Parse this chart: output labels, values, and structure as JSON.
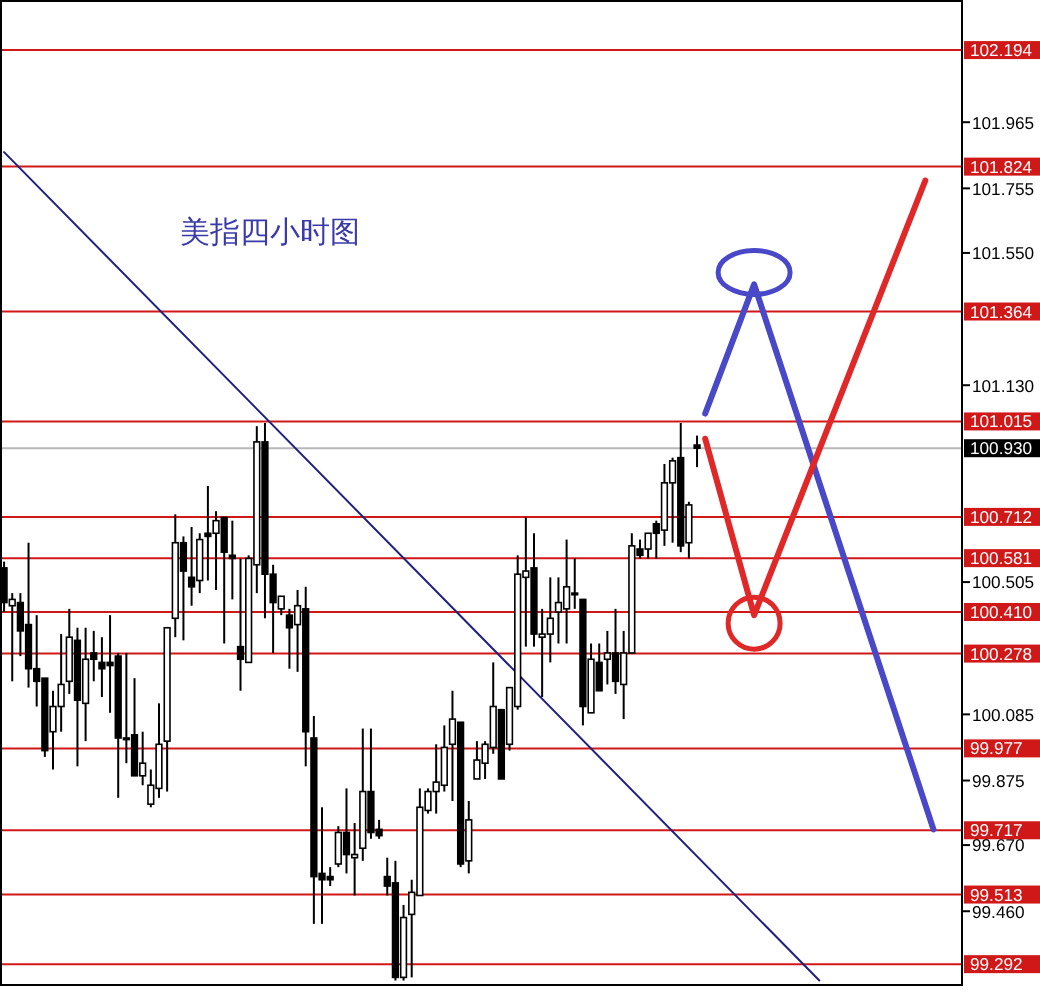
{
  "chart_data": {
    "type": "candlestick",
    "title": "美指四小时图",
    "tick_labels": "y",
    "categories": [
      null,
      null,
      null,
      null,
      null,
      null,
      null,
      null,
      null,
      null,
      null,
      null,
      null,
      null,
      null,
      null,
      null,
      null,
      null,
      null,
      null,
      null,
      null,
      null,
      null,
      null,
      null,
      null,
      null,
      null,
      null,
      null,
      null,
      null,
      null,
      null,
      null,
      null,
      null,
      null,
      null,
      null,
      null,
      null,
      null,
      null,
      null,
      null,
      null,
      null,
      null,
      null,
      null,
      null,
      null,
      null,
      null,
      null,
      null,
      null,
      null,
      null,
      null,
      null,
      null,
      null,
      null,
      null,
      null,
      null,
      null,
      null,
      null,
      null,
      null,
      null,
      null,
      null,
      null,
      null,
      null,
      null,
      null,
      null,
      null,
      null,
      null,
      null,
      null,
      null,
      null,
      null,
      null,
      null,
      null,
      null,
      null,
      null,
      null,
      null,
      null,
      null,
      null,
      null,
      null,
      null,
      null,
      null,
      null,
      null,
      null,
      null,
      null,
      null,
      null,
      null,
      null,
      null
    ],
    "ohlc": [
      [
        100.55,
        100.57,
        100.41,
        100.44
      ],
      [
        100.43,
        100.47,
        100.19,
        100.45
      ],
      [
        100.44,
        100.47,
        100.27,
        100.35
      ],
      [
        100.37,
        100.63,
        100.17,
        100.23
      ],
      [
        100.23,
        100.4,
        100.11,
        100.19
      ],
      [
        100.2,
        100.2,
        99.95,
        99.97
      ],
      [
        100.03,
        100.16,
        99.91,
        100.11
      ],
      [
        100.11,
        100.34,
        100.03,
        100.18
      ],
      [
        100.19,
        100.42,
        100.15,
        100.33
      ],
      [
        100.32,
        100.36,
        99.92,
        100.13
      ],
      [
        100.12,
        100.36,
        100.0,
        100.26
      ],
      [
        100.28,
        100.35,
        100.19,
        100.26
      ],
      [
        100.25,
        100.33,
        100.14,
        100.23
      ],
      [
        100.25,
        100.4,
        100.09,
        100.24
      ],
      [
        100.27,
        100.28,
        99.82,
        100.01
      ],
      [
        100.01,
        100.28,
        99.93,
        100.01
      ],
      [
        100.02,
        100.2,
        99.89,
        99.89
      ],
      [
        99.89,
        100.03,
        99.86,
        99.93
      ],
      [
        99.8,
        99.91,
        99.79,
        99.86
      ],
      [
        99.85,
        100.12,
        99.82,
        99.99
      ],
      [
        100.0,
        100.36,
        99.84,
        100.36
      ],
      [
        100.39,
        100.72,
        100.33,
        100.63
      ],
      [
        100.63,
        100.65,
        100.32,
        100.54
      ],
      [
        100.52,
        100.68,
        100.43,
        100.49
      ],
      [
        100.51,
        100.66,
        100.47,
        100.64
      ],
      [
        100.66,
        100.81,
        100.51,
        100.65
      ],
      [
        100.66,
        100.73,
        100.48,
        100.7
      ],
      [
        100.71,
        100.71,
        100.31,
        100.6
      ],
      [
        100.59,
        100.7,
        100.45,
        100.58
      ],
      [
        100.3,
        100.58,
        100.16,
        100.26
      ],
      [
        100.25,
        100.59,
        100.25,
        100.58
      ],
      [
        100.56,
        101.0,
        100.47,
        100.95
      ],
      [
        100.95,
        101.01,
        100.39,
        100.53
      ],
      [
        100.53,
        100.56,
        100.28,
        100.44
      ],
      [
        100.42,
        100.46,
        100.4,
        100.46
      ],
      [
        100.4,
        100.42,
        100.23,
        100.36
      ],
      [
        100.37,
        100.48,
        100.22,
        100.43
      ],
      [
        100.42,
        100.49,
        99.92,
        100.03
      ],
      [
        100.01,
        100.08,
        99.42,
        99.57
      ],
      [
        99.58,
        99.79,
        99.42,
        99.56
      ],
      [
        99.57,
        99.6,
        99.54,
        99.56
      ],
      [
        99.61,
        99.73,
        99.6,
        99.71
      ],
      [
        99.71,
        99.85,
        99.58,
        99.64
      ],
      [
        99.63,
        99.74,
        99.51,
        99.64
      ],
      [
        99.66,
        100.04,
        99.62,
        99.84
      ],
      [
        99.84,
        100.04,
        99.69,
        99.71
      ],
      [
        99.72,
        99.75,
        99.69,
        99.7
      ],
      [
        99.57,
        99.63,
        99.51,
        99.54
      ],
      [
        99.55,
        99.62,
        99.24,
        99.25
      ],
      [
        99.25,
        99.48,
        99.24,
        99.44
      ],
      [
        99.45,
        99.56,
        99.25,
        99.52
      ],
      [
        99.51,
        99.85,
        99.51,
        99.79
      ],
      [
        99.78,
        99.85,
        99.77,
        99.84
      ],
      [
        99.84,
        99.99,
        99.77,
        99.87
      ],
      [
        99.86,
        100.05,
        99.84,
        99.98
      ],
      [
        99.99,
        100.16,
        99.81,
        100.07
      ],
      [
        100.06,
        100.06,
        99.6,
        99.61
      ],
      [
        99.62,
        99.81,
        99.58,
        99.75
      ],
      [
        99.88,
        100.0,
        99.88,
        99.94
      ],
      [
        99.93,
        100.0,
        99.88,
        99.99
      ],
      [
        99.98,
        100.25,
        99.96,
        100.11
      ],
      [
        100.1,
        100.1,
        99.88,
        99.88
      ],
      [
        99.99,
        100.17,
        99.97,
        100.17
      ],
      [
        100.11,
        100.59,
        100.1,
        100.53
      ],
      [
        100.52,
        100.71,
        100.3,
        100.54
      ],
      [
        100.55,
        100.66,
        100.3,
        100.34
      ],
      [
        100.33,
        100.42,
        100.14,
        100.34
      ],
      [
        100.34,
        100.52,
        100.25,
        100.39
      ],
      [
        100.41,
        100.52,
        100.31,
        100.44
      ],
      [
        100.42,
        100.64,
        100.31,
        100.49
      ],
      [
        100.47,
        100.58,
        100.42,
        100.47
      ],
      [
        100.45,
        100.45,
        100.05,
        100.11
      ],
      [
        100.09,
        100.31,
        100.09,
        100.26
      ],
      [
        100.25,
        100.31,
        100.16,
        100.16
      ],
      [
        100.26,
        100.35,
        100.18,
        100.28
      ],
      [
        100.28,
        100.42,
        100.15,
        100.19
      ],
      [
        100.18,
        100.35,
        100.07,
        100.28
      ],
      [
        100.28,
        100.66,
        100.28,
        100.62
      ],
      [
        100.61,
        100.64,
        100.58,
        100.59
      ],
      [
        100.61,
        100.66,
        100.58,
        100.66
      ],
      [
        100.69,
        100.7,
        100.58,
        100.66
      ],
      [
        100.67,
        100.88,
        100.62,
        100.82
      ],
      [
        100.82,
        100.9,
        100.63,
        100.89
      ],
      [
        100.9,
        101.01,
        100.6,
        100.62
      ],
      [
        100.63,
        100.76,
        100.58,
        100.75
      ],
      [
        100.94,
        100.97,
        100.87,
        100.93
      ],
      null,
      null,
      null,
      null,
      null,
      null,
      null,
      null,
      null,
      null,
      null,
      null,
      null,
      null,
      null,
      null,
      null,
      null,
      null,
      null,
      null,
      null,
      null,
      null,
      null,
      null,
      null,
      null,
      null,
      null,
      null,
      null
    ],
    "series": [
      {
        "type": "line",
        "color": "#202080",
        "values": [
          101.87,
          null,
          null,
          null,
          null,
          null,
          null,
          null,
          null,
          null,
          null,
          null,
          null,
          null,
          null,
          null,
          null,
          null,
          null,
          null,
          null,
          null,
          null,
          null,
          null,
          null,
          null,
          null,
          null,
          null,
          null,
          null,
          null,
          null,
          null,
          null,
          null,
          null,
          null,
          null,
          null,
          null,
          null,
          null,
          null,
          null,
          null,
          null,
          null,
          null,
          null,
          null,
          null,
          null,
          null,
          null,
          null,
          null,
          null,
          null,
          null,
          null,
          null,
          null,
          null,
          null,
          null,
          null,
          null,
          null,
          null,
          null,
          null,
          null,
          null,
          null,
          null,
          null,
          null,
          null,
          null,
          null,
          null,
          null,
          null,
          null,
          null,
          null,
          null,
          null,
          null,
          null,
          null,
          null,
          null,
          null,
          null,
          null,
          null,
          null,
          99.24,
          null,
          null,
          null,
          null,
          null,
          null,
          null,
          null,
          null,
          null,
          null,
          null,
          null,
          null,
          null,
          null,
          null
        ]
      },
      {
        "type": "line",
        "color": "#4848c8",
        "values": [
          null,
          null,
          null,
          null,
          null,
          null,
          null,
          null,
          null,
          null,
          null,
          null,
          null,
          null,
          null,
          null,
          null,
          null,
          null,
          null,
          null,
          null,
          null,
          null,
          null,
          null,
          null,
          null,
          null,
          null,
          null,
          null,
          null,
          null,
          null,
          null,
          null,
          null,
          null,
          null,
          null,
          null,
          null,
          null,
          null,
          null,
          null,
          null,
          null,
          null,
          null,
          null,
          null,
          null,
          null,
          null,
          null,
          null,
          null,
          null,
          null,
          null,
          null,
          null,
          null,
          null,
          null,
          null,
          null,
          null,
          null,
          null,
          null,
          null,
          null,
          null,
          null,
          null,
          null,
          null,
          null,
          null,
          null,
          null,
          null,
          null,
          101.04,
          null,
          null,
          null,
          null,
          null,
          101.45,
          null,
          null,
          null,
          null,
          null,
          null,
          null,
          null,
          null,
          null,
          null,
          null,
          null,
          null,
          null,
          null,
          null,
          null,
          null,
          null,
          null,
          99.72,
          null,
          null,
          null
        ]
      },
      {
        "type": "line",
        "color": "#e02828",
        "values": [
          null,
          null,
          null,
          null,
          null,
          null,
          null,
          null,
          null,
          null,
          null,
          null,
          null,
          null,
          null,
          null,
          null,
          null,
          null,
          null,
          null,
          null,
          null,
          null,
          null,
          null,
          null,
          null,
          null,
          null,
          null,
          null,
          null,
          null,
          null,
          null,
          null,
          null,
          null,
          null,
          null,
          null,
          null,
          null,
          null,
          null,
          null,
          null,
          null,
          null,
          null,
          null,
          null,
          null,
          null,
          null,
          null,
          null,
          null,
          null,
          null,
          null,
          null,
          null,
          null,
          null,
          null,
          null,
          null,
          null,
          null,
          null,
          null,
          null,
          null,
          null,
          null,
          null,
          null,
          null,
          null,
          null,
          null,
          null,
          null,
          null,
          100.96,
          null,
          null,
          null,
          null,
          null,
          100.4,
          null,
          null,
          null,
          null,
          null,
          null,
          null,
          null,
          null,
          null,
          null,
          null,
          null,
          null,
          null,
          null,
          null,
          null,
          null,
          null,
          101.78,
          null,
          null,
          null,
          null
        ]
      }
    ],
    "ylim": [
      99.229,
      102.353
    ],
    "yticks": [
      {
        "value": 101.965,
        "label": "101.965"
      },
      {
        "value": 101.755,
        "label": "101.755"
      },
      {
        "value": 101.55,
        "label": "101.550"
      },
      {
        "value": 101.13,
        "label": "101.130"
      },
      {
        "value": 100.505,
        "label": "100.505"
      },
      {
        "value": 100.085,
        "label": "100.085"
      },
      {
        "value": 99.875,
        "label": "99.875"
      },
      {
        "value": 99.67,
        "label": "99.670"
      },
      {
        "value": 99.46,
        "label": "99.460"
      }
    ],
    "ref_lines": [
      {
        "axis": "y",
        "value": 102.194,
        "label": "102.194",
        "color": "#d01818"
      },
      {
        "axis": "y",
        "value": 101.824,
        "label": "101.824",
        "color": "#d01818"
      },
      {
        "axis": "y",
        "value": 101.364,
        "label": "101.364",
        "color": "#d01818"
      },
      {
        "axis": "y",
        "value": 101.015,
        "label": "101.015",
        "color": "#d01818"
      },
      {
        "axis": "y",
        "value": 100.93,
        "label": "100.930",
        "color": "#b8b8b8"
      },
      {
        "axis": "y",
        "value": 100.712,
        "label": "100.712",
        "color": "#d01818"
      },
      {
        "axis": "y",
        "value": 100.581,
        "label": "100.581",
        "color": "#d01818"
      },
      {
        "axis": "y",
        "value": 100.41,
        "label": "100.410",
        "color": "#d01818"
      },
      {
        "axis": "y",
        "value": 100.278,
        "label": "100.278",
        "color": "#d01818"
      },
      {
        "axis": "y",
        "value": 99.977,
        "label": "99.977",
        "color": "#d01818"
      },
      {
        "axis": "y",
        "value": 99.717,
        "label": "99.717",
        "color": "#d01818"
      },
      {
        "axis": "y",
        "value": 99.513,
        "label": "99.513",
        "color": "#d01818"
      },
      {
        "axis": "y",
        "value": 99.292,
        "label": "99.292",
        "color": "#d01818"
      }
    ]
  }
}
